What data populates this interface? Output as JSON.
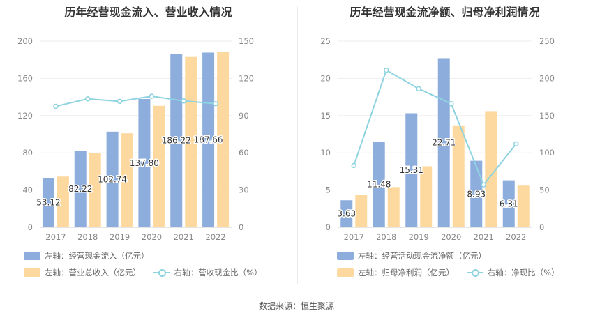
{
  "source_label": "数据来源：恒生聚源",
  "colors": {
    "bar1": "#8daedd",
    "bar2": "#fdd9a0",
    "line": "#8ed3e0"
  },
  "chart_data": [
    {
      "type": "bar",
      "title": "历年经营现金流入、营业收入情况",
      "categories": [
        "2017",
        "2018",
        "2019",
        "2020",
        "2021",
        "2022"
      ],
      "y_left": {
        "ylim": [
          0,
          200
        ],
        "ticks": [
          "0",
          "40",
          "80",
          "120",
          "160",
          "200"
        ]
      },
      "y_right": {
        "ylim": [
          0,
          150
        ],
        "ticks": [
          "0",
          "30",
          "60",
          "90",
          "120",
          "150"
        ]
      },
      "series": [
        {
          "name": "左轴：经营现金流入（亿元）",
          "axis": "left",
          "kind": "bar",
          "values": [
            53.12,
            82.22,
            102.74,
            137.8,
            186.22,
            187.66
          ],
          "labels": [
            "53.12",
            "82.22",
            "102.74",
            "137.80",
            "186.22",
            "187.66"
          ]
        },
        {
          "name": "左轴：营业总收入（亿元）",
          "axis": "left",
          "kind": "bar",
          "values": [
            54.5,
            79.5,
            101,
            130.5,
            183,
            188.5
          ]
        },
        {
          "name": "右轴：营收现金比（%）",
          "axis": "right",
          "kind": "line",
          "values": [
            97.5,
            103.5,
            101.5,
            105.6,
            101.8,
            99.6
          ]
        }
      ]
    },
    {
      "type": "bar",
      "title": "历年经营现金流净额、归母净利润情况",
      "categories": [
        "2017",
        "2018",
        "2019",
        "2020",
        "2021",
        "2022"
      ],
      "y_left": {
        "ylim": [
          0,
          25
        ],
        "ticks": [
          "0",
          "5",
          "10",
          "15",
          "20",
          "25"
        ]
      },
      "y_right": {
        "ylim": [
          0,
          250
        ],
        "ticks": [
          "0",
          "50",
          "100",
          "150",
          "200",
          "250"
        ]
      },
      "series": [
        {
          "name": "左轴：经营活动现金流净额（亿元）",
          "axis": "left",
          "kind": "bar",
          "values": [
            3.63,
            11.48,
            15.31,
            22.71,
            8.93,
            6.31
          ],
          "labels": [
            "3.63",
            "11.48",
            "15.31",
            "22.71",
            "8.93",
            "6.31"
          ]
        },
        {
          "name": "左轴：归母净利润（亿元）",
          "axis": "left",
          "kind": "bar",
          "values": [
            4.35,
            5.4,
            8.2,
            13.6,
            15.6,
            5.6
          ]
        },
        {
          "name": "右轴：净现比（%）",
          "axis": "right",
          "kind": "line",
          "values": [
            83,
            211,
            186,
            166,
            57,
            112
          ]
        }
      ]
    }
  ]
}
